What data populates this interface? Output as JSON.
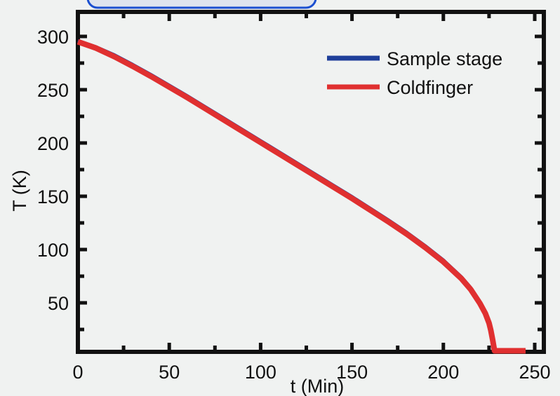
{
  "chart_data": {
    "type": "line",
    "xlabel": "t (Min)",
    "ylabel": "T (K)",
    "xlim": [
      0,
      255
    ],
    "ylim": [
      4,
      323
    ],
    "x_ticks": [
      0,
      50,
      100,
      150,
      200,
      250
    ],
    "y_ticks": [
      50,
      100,
      150,
      200,
      250,
      300
    ],
    "grid": false,
    "legend_position": "top-right",
    "series": [
      {
        "name": "Sample stage",
        "color": "#1f3f9a",
        "x": [
          0,
          10,
          20,
          30,
          40,
          50,
          60,
          70,
          80,
          90,
          100,
          110,
          120,
          130,
          140,
          150,
          160,
          170,
          180,
          190,
          200,
          210,
          215,
          220,
          223,
          225,
          226,
          227,
          228,
          230,
          235,
          240,
          245
        ],
        "y": [
          296,
          290,
          282.5,
          273.5,
          264,
          254,
          244,
          233.5,
          223,
          212.5,
          202,
          191.5,
          181,
          170.5,
          160,
          149.5,
          138.5,
          127.5,
          116,
          103.5,
          90,
          74,
          64,
          51,
          41,
          32,
          25,
          16,
          6,
          5,
          5,
          5,
          5
        ]
      },
      {
        "name": "Coldfinger",
        "color": "#e03030",
        "x": [
          0,
          10,
          20,
          30,
          40,
          50,
          60,
          70,
          80,
          90,
          100,
          110,
          120,
          130,
          140,
          150,
          160,
          170,
          180,
          190,
          200,
          210,
          215,
          220,
          223,
          225,
          226,
          227,
          228,
          230,
          235,
          240,
          245
        ],
        "y": [
          295,
          289,
          281,
          272,
          262.5,
          252.5,
          242.5,
          232,
          221.5,
          211,
          200.5,
          190,
          179.5,
          169,
          158.5,
          148,
          137,
          126,
          114.5,
          102,
          88.5,
          72.5,
          62.5,
          49.5,
          40,
          31,
          24,
          15,
          5,
          5,
          5,
          5,
          5
        ]
      }
    ]
  }
}
